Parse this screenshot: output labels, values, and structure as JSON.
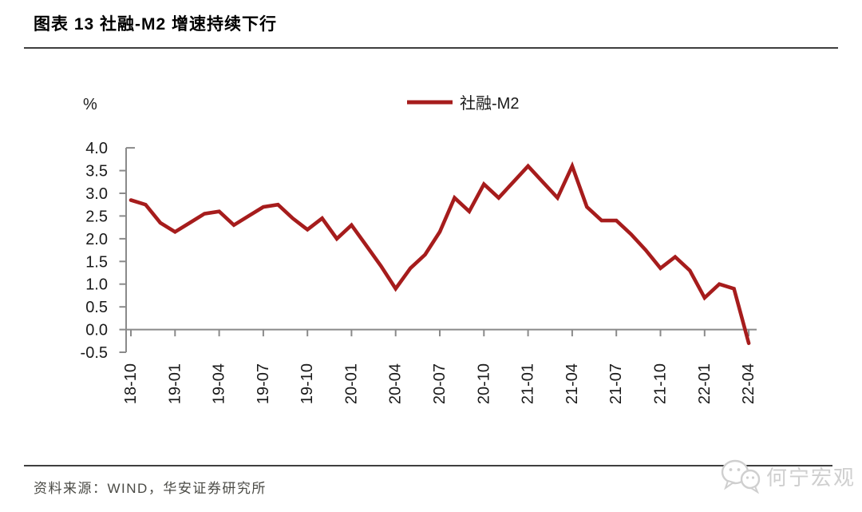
{
  "page": {
    "title": "图表 13 社融-M2 增速持续下行",
    "source": "资料来源：WIND，华安证券研究所",
    "watermark": "何宁宏观"
  },
  "colors": {
    "line": "#a61c1c",
    "axis": "#8a8a8a",
    "tick_label": "#1a1a1a",
    "divider": "#3f3f3f",
    "source_text": "#4a4a45",
    "watermark": "#cfcfcf"
  },
  "chart_data": {
    "type": "line",
    "title": "社融-M2 增速持续下行",
    "unit_label": "%",
    "legend": [
      {
        "name": "社融-M2",
        "color": "#a61c1c"
      }
    ],
    "legend_position": "top-center",
    "grid": false,
    "ylim": [
      -0.5,
      4.0
    ],
    "y_ticks": [
      4.0,
      3.5,
      3.0,
      2.5,
      2.0,
      1.5,
      1.0,
      0.5,
      0.0,
      -0.5
    ],
    "x_tick_labels": [
      "18-10",
      "19-01",
      "19-04",
      "19-07",
      "19-10",
      "20-01",
      "20-04",
      "20-07",
      "20-10",
      "21-01",
      "21-04",
      "21-07",
      "21-10",
      "22-01",
      "22-04"
    ],
    "x": [
      "2018-10",
      "2018-11",
      "2018-12",
      "2019-01",
      "2019-02",
      "2019-03",
      "2019-04",
      "2019-05",
      "2019-06",
      "2019-07",
      "2019-08",
      "2019-09",
      "2019-10",
      "2019-11",
      "2019-12",
      "2020-01",
      "2020-02",
      "2020-03",
      "2020-04",
      "2020-05",
      "2020-06",
      "2020-07",
      "2020-08",
      "2020-09",
      "2020-10",
      "2020-11",
      "2020-12",
      "2021-01",
      "2021-02",
      "2021-03",
      "2021-04",
      "2021-05",
      "2021-06",
      "2021-07",
      "2021-08",
      "2021-09",
      "2021-10",
      "2021-11",
      "2021-12",
      "2022-01",
      "2022-02",
      "2022-03",
      "2022-04"
    ],
    "series": [
      {
        "name": "社融-M2",
        "values": [
          2.85,
          2.75,
          2.35,
          2.15,
          2.35,
          2.55,
          2.6,
          2.3,
          2.5,
          2.7,
          2.75,
          2.45,
          2.2,
          2.45,
          2.0,
          2.3,
          1.85,
          1.4,
          0.9,
          1.35,
          1.65,
          2.15,
          2.9,
          2.6,
          3.2,
          2.9,
          3.25,
          3.6,
          3.25,
          2.9,
          3.6,
          2.7,
          2.4,
          2.4,
          2.1,
          1.75,
          1.35,
          1.6,
          1.3,
          0.7,
          1.0,
          0.9,
          -0.3
        ]
      }
    ]
  }
}
